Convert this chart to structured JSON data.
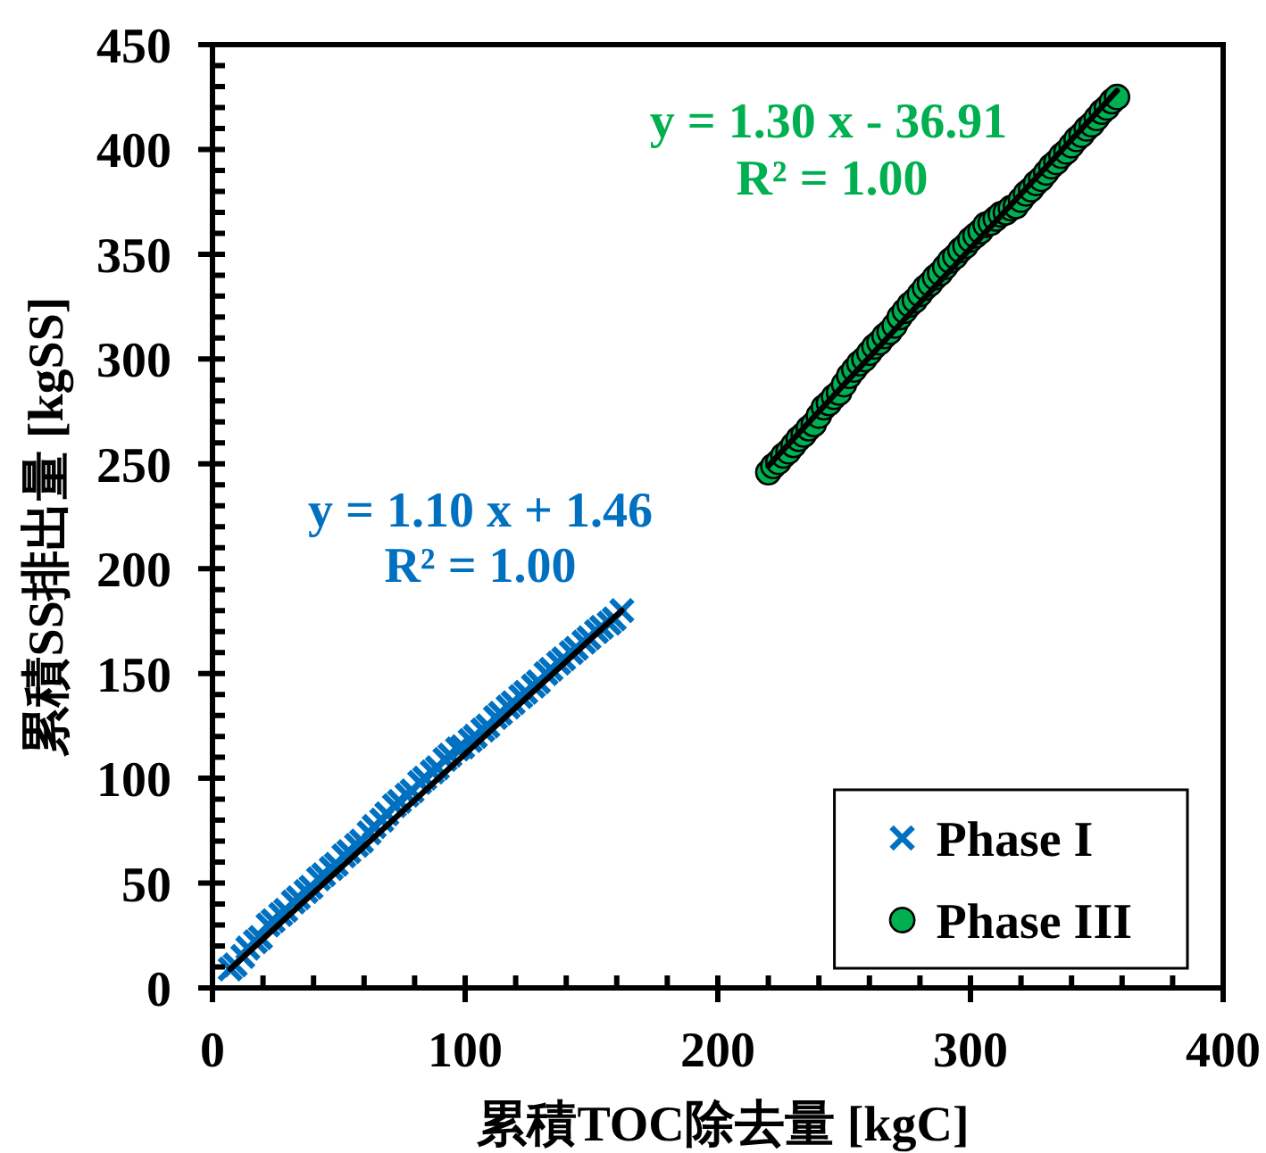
{
  "chart_data": {
    "type": "scatter",
    "xlabel": "累積TOC除去量 [kgC]",
    "ylabel": "累積SS排出量 [kgSS]",
    "xlim": [
      0,
      400
    ],
    "ylim": [
      0,
      450
    ],
    "xticks": [
      0,
      {
        "value": 20,
        "label": null
      },
      {
        "value": 40,
        "label": null
      },
      {
        "value": 60,
        "label": null
      },
      {
        "value": 80,
        "label": null
      },
      100,
      {
        "value": 120,
        "label": null
      },
      {
        "value": 140,
        "label": null
      },
      {
        "value": 160,
        "label": null
      },
      {
        "value": 180,
        "label": null
      },
      200,
      {
        "value": 220,
        "label": null
      },
      {
        "value": 240,
        "label": null
      },
      {
        "value": 260,
        "label": null
      },
      {
        "value": 280,
        "label": null
      },
      300,
      {
        "value": 320,
        "label": null
      },
      {
        "value": 340,
        "label": null
      },
      {
        "value": 360,
        "label": null
      },
      {
        "value": 380,
        "label": null
      },
      400
    ],
    "yticks": [
      0,
      {
        "value": 10,
        "label": null
      },
      {
        "value": 20,
        "label": null
      },
      {
        "value": 30,
        "label": null
      },
      {
        "value": 40,
        "label": null
      },
      50,
      {
        "value": 60,
        "label": null
      },
      {
        "value": 70,
        "label": null
      },
      {
        "value": 80,
        "label": null
      },
      {
        "value": 90,
        "label": null
      },
      100,
      {
        "value": 110,
        "label": null
      },
      {
        "value": 120,
        "label": null
      },
      {
        "value": 130,
        "label": null
      },
      {
        "value": 140,
        "label": null
      },
      150,
      {
        "value": 160,
        "label": null
      },
      {
        "value": 170,
        "label": null
      },
      {
        "value": 180,
        "label": null
      },
      {
        "value": 190,
        "label": null
      },
      200,
      {
        "value": 210,
        "label": null
      },
      {
        "value": 220,
        "label": null
      },
      {
        "value": 230,
        "label": null
      },
      {
        "value": 240,
        "label": null
      },
      250,
      {
        "value": 260,
        "label": null
      },
      {
        "value": 270,
        "label": null
      },
      {
        "value": 280,
        "label": null
      },
      {
        "value": 290,
        "label": null
      },
      300,
      {
        "value": 310,
        "label": null
      },
      {
        "value": 320,
        "label": null
      },
      {
        "value": 330,
        "label": null
      },
      {
        "value": 340,
        "label": null
      },
      350,
      {
        "value": 360,
        "label": null
      },
      {
        "value": 370,
        "label": null
      },
      {
        "value": 380,
        "label": null
      },
      {
        "value": 390,
        "label": null
      },
      400,
      {
        "value": 410,
        "label": null
      },
      {
        "value": 420,
        "label": null
      },
      {
        "value": 430,
        "label": null
      },
      {
        "value": 440,
        "label": null
      },
      450
    ],
    "legend": "bottom right",
    "annotations": [
      "y = 1.10 x + 1.46",
      "R² = 1.00",
      "y = 1.30 x - 36.91",
      "R² = 1.00"
    ],
    "series": [
      {
        "name": "Phase I",
        "marker": "cross",
        "color": "#0070c0",
        "x": [
          7,
          9,
          12,
          14,
          17,
          19,
          22,
          24,
          27,
          29,
          32,
          34,
          37,
          39,
          42,
          44,
          47,
          49,
          52,
          54,
          57,
          59,
          62,
          64,
          67,
          69,
          72,
          74,
          77,
          79,
          82,
          84,
          87,
          89,
          92,
          94,
          97,
          99,
          102,
          104,
          107,
          109,
          112,
          114,
          117,
          119,
          122,
          124,
          127,
          129,
          132,
          134,
          137,
          139,
          142,
          144,
          147,
          149,
          152,
          154,
          157,
          159,
          162
        ],
        "values": [
          9,
          11,
          15,
          19,
          22,
          24,
          30,
          32,
          35,
          37,
          41,
          43,
          46,
          48,
          52,
          54,
          57,
          59,
          63,
          65,
          68,
          70,
          74,
          77,
          80,
          83,
          87,
          89,
          92,
          94,
          98,
          100,
          103,
          105,
          109,
          111,
          114,
          115,
          118,
          120,
          123,
          125,
          129,
          131,
          134,
          136,
          139,
          141,
          144,
          146,
          150,
          152,
          155,
          157,
          160,
          162,
          165,
          167,
          170,
          172,
          174,
          176,
          180
        ]
      },
      {
        "type": "line",
        "color": "#000000",
        "x": [
          7,
          162
        ],
        "values": [
          9,
          180
        ]
      },
      {
        "name": "Phase III",
        "marker": "circle",
        "color": "#00b050",
        "x": [
          220,
          222,
          224,
          226,
          228,
          230,
          232,
          234,
          236,
          238,
          240,
          242,
          244,
          246,
          248,
          250,
          252,
          254,
          256,
          258,
          260,
          262,
          264,
          266,
          268,
          270,
          272,
          274,
          276,
          278,
          280,
          282,
          284,
          286,
          288,
          290,
          292,
          294,
          296,
          298,
          300,
          302,
          304,
          306,
          308,
          310,
          312,
          314,
          316,
          318,
          320,
          322,
          324,
          326,
          328,
          330,
          332,
          334,
          336,
          338,
          340,
          342,
          344,
          346,
          348,
          350,
          352,
          354,
          356,
          358
        ],
        "values": [
          246,
          249,
          251,
          254,
          256,
          259,
          262,
          264,
          267,
          269,
          273,
          277,
          279,
          282,
          284,
          288,
          292,
          295,
          298,
          300,
          303,
          306,
          308,
          311,
          313,
          316,
          320,
          323,
          326,
          328,
          331,
          334,
          336,
          339,
          341,
          344,
          347,
          349,
          352,
          354,
          357,
          359,
          361,
          364,
          365,
          367,
          369,
          370,
          372,
          373,
          376,
          379,
          381,
          384,
          386,
          389,
          392,
          394,
          397,
          399,
          402,
          405,
          407,
          410,
          412,
          415,
          418,
          420,
          423,
          425
        ]
      },
      {
        "type": "line",
        "color": "#000000",
        "x": [
          220,
          358
        ],
        "values": [
          249,
          428
        ]
      }
    ]
  }
}
